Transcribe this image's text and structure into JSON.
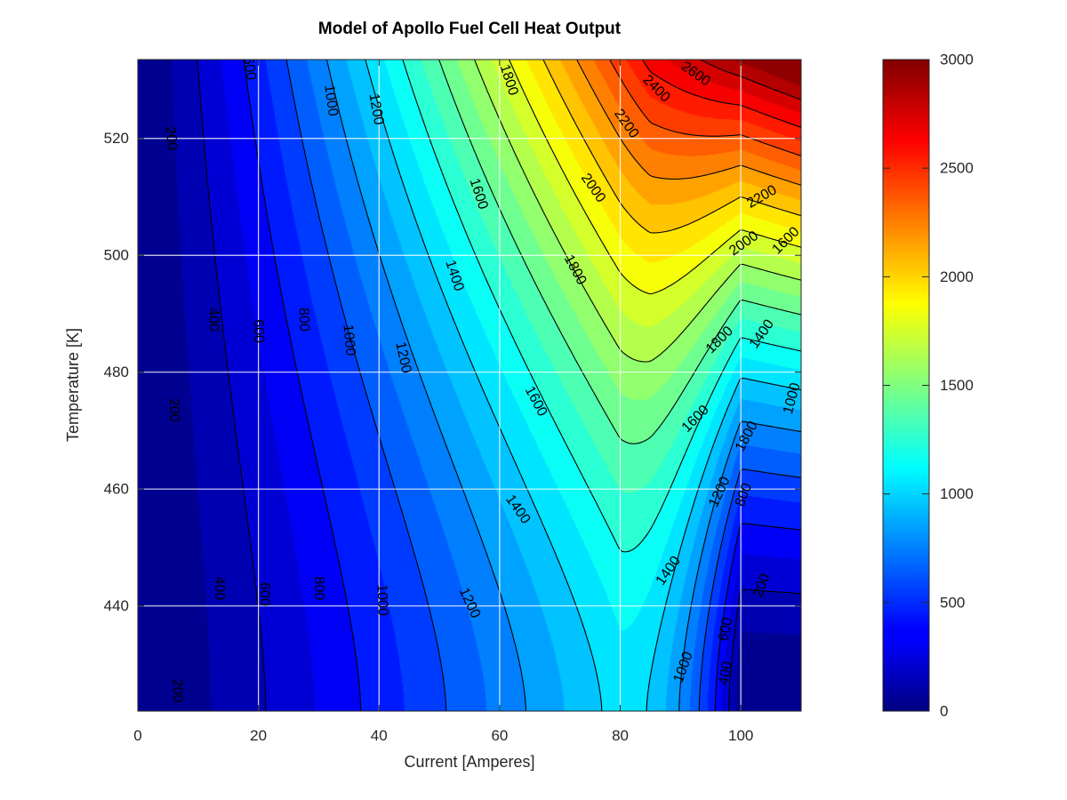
{
  "chart_data": {
    "type": "heatmap",
    "subtype": "filled-contour",
    "title": "Model of Apollo Fuel Cell Heat Output",
    "xlabel": "Current [Amperes]",
    "ylabel": "Temperature [K]",
    "xlim": [
      0,
      110
    ],
    "ylim": [
      422,
      533.5
    ],
    "x_ticks": [
      0,
      20,
      40,
      60,
      80,
      100
    ],
    "y_ticks": [
      440,
      460,
      480,
      500,
      520
    ],
    "grid": true,
    "colormap": "jet",
    "colorbar": {
      "position": "right",
      "range": [
        0,
        3000
      ],
      "ticks": [
        0,
        500,
        1000,
        1500,
        2000,
        2500,
        3000
      ]
    },
    "contour_levels": [
      200,
      400,
      600,
      800,
      1000,
      1200,
      1400,
      1600,
      1800,
      2000,
      2200,
      2400,
      2600,
      2800
    ],
    "contour_labels": [
      {
        "text": "200",
        "x": 5.5,
        "y": 520,
        "angle": 85
      },
      {
        "text": "600",
        "x": 18.5,
        "y": 532,
        "angle": 82
      },
      {
        "text": "1000",
        "x": 32,
        "y": 526.5,
        "angle": 82
      },
      {
        "text": "1200",
        "x": 39.5,
        "y": 525,
        "angle": 80
      },
      {
        "text": "1800",
        "x": 61.5,
        "y": 530,
        "angle": 72
      },
      {
        "text": "2600",
        "x": 92.5,
        "y": 531,
        "angle": 35
      },
      {
        "text": "2400",
        "x": 86,
        "y": 528.5,
        "angle": 45
      },
      {
        "text": "2200",
        "x": 81,
        "y": 522.5,
        "angle": 55
      },
      {
        "text": "1600",
        "x": 56.5,
        "y": 510.5,
        "angle": 72
      },
      {
        "text": "2000",
        "x": 75.5,
        "y": 511.5,
        "angle": 55
      },
      {
        "text": "2200",
        "x": 103.5,
        "y": 510,
        "angle": -30
      },
      {
        "text": "2000",
        "x": 100.5,
        "y": 502,
        "angle": -35
      },
      {
        "text": "1600",
        "x": 107.5,
        "y": 502.5,
        "angle": -45
      },
      {
        "text": "1400",
        "x": 52.5,
        "y": 496.5,
        "angle": 72
      },
      {
        "text": "1800",
        "x": 72.5,
        "y": 497.5,
        "angle": 62
      },
      {
        "text": "400",
        "x": 12.5,
        "y": 489,
        "angle": 88
      },
      {
        "text": "600",
        "x": 20,
        "y": 487,
        "angle": 88
      },
      {
        "text": "800",
        "x": 27.5,
        "y": 489,
        "angle": 88
      },
      {
        "text": "1000",
        "x": 35,
        "y": 485.5,
        "angle": 85
      },
      {
        "text": "1800",
        "x": 96.5,
        "y": 485.5,
        "angle": -45
      },
      {
        "text": "1400",
        "x": 103.5,
        "y": 486.5,
        "angle": -55
      },
      {
        "text": "1200",
        "x": 44,
        "y": 482.5,
        "angle": 78
      },
      {
        "text": "1600",
        "x": 66,
        "y": 475,
        "angle": 62
      },
      {
        "text": "1600",
        "x": 92.5,
        "y": 472,
        "angle": -45
      },
      {
        "text": "1800",
        "x": 101,
        "y": 469,
        "angle": -62
      },
      {
        "text": "1000",
        "x": 108.5,
        "y": 475.5,
        "angle": -75
      },
      {
        "text": "200",
        "x": 6,
        "y": 473.5,
        "angle": 88
      },
      {
        "text": "1200",
        "x": 96.5,
        "y": 459.5,
        "angle": -65
      },
      {
        "text": "800",
        "x": 100.5,
        "y": 459,
        "angle": -70
      },
      {
        "text": "1400",
        "x": 63,
        "y": 456.5,
        "angle": 55
      },
      {
        "text": "1400",
        "x": 88,
        "y": 446,
        "angle": -55
      },
      {
        "text": "200",
        "x": 103.5,
        "y": 443.5,
        "angle": -70
      },
      {
        "text": "400",
        "x": 13.5,
        "y": 443,
        "angle": 90
      },
      {
        "text": "600",
        "x": 21,
        "y": 442,
        "angle": 90
      },
      {
        "text": "800",
        "x": 30,
        "y": 443,
        "angle": 90
      },
      {
        "text": "1000",
        "x": 40.5,
        "y": 441,
        "angle": 88
      },
      {
        "text": "1200",
        "x": 55,
        "y": 440.5,
        "angle": 65
      },
      {
        "text": "600",
        "x": 97.5,
        "y": 436,
        "angle": -78
      },
      {
        "text": "1000",
        "x": 90.5,
        "y": 429.5,
        "angle": -70
      },
      {
        "text": "400",
        "x": 97.5,
        "y": 428.5,
        "angle": -80
      },
      {
        "text": "200",
        "x": 6.5,
        "y": 425.5,
        "angle": 88
      }
    ]
  }
}
